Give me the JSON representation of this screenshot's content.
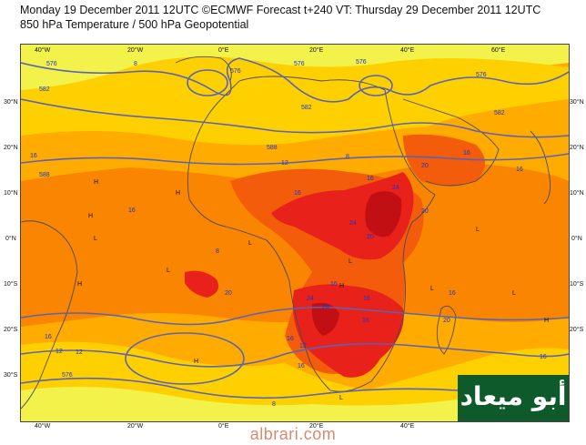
{
  "header": {
    "line1": "Monday 19 December 2011 12UTC ©ECMWF Forecast t+240 VT: Thursday 29 December 2011 12UTC",
    "line2": "850 hPa Temperature / 500 hPa Geopotential"
  },
  "axes": {
    "longitudes": [
      "40°W",
      "20°W",
      "0°E",
      "20°E",
      "40°E",
      "60°E"
    ],
    "latitudes": [
      "30°N",
      "20°N",
      "10°N",
      "0°N",
      "10°S",
      "20°S",
      "30°S"
    ]
  },
  "contour_labels": {
    "geopotential": [
      "576",
      "576",
      "576",
      "576",
      "576",
      "582",
      "582",
      "582",
      "576",
      "588",
      "588"
    ],
    "temperature": [
      "8",
      "8",
      "8",
      "12",
      "16",
      "16",
      "12",
      "16",
      "20",
      "24",
      "20",
      "24",
      "20",
      "16",
      "20",
      "16",
      "12",
      "16",
      "8",
      "20",
      "24",
      "16",
      "20",
      "16",
      "16",
      "16",
      "16",
      "16",
      "16",
      "12",
      "16"
    ]
  },
  "extrema": {
    "high": "H",
    "low": "L"
  },
  "colors": {
    "cold": "#f3f24a",
    "cool": "#ffd000",
    "mild": "#ffab00",
    "warm": "#f98500",
    "hot": "#f25c0a",
    "hotter": "#e8211a",
    "hottest": "#c10f14",
    "coast": "#4a4a5a",
    "geopotential": "#5a64b4",
    "label": "#1a35cc"
  },
  "logo": {
    "text": "أبو ميعاد"
  },
  "watermark": {
    "text": "albrari.com"
  }
}
